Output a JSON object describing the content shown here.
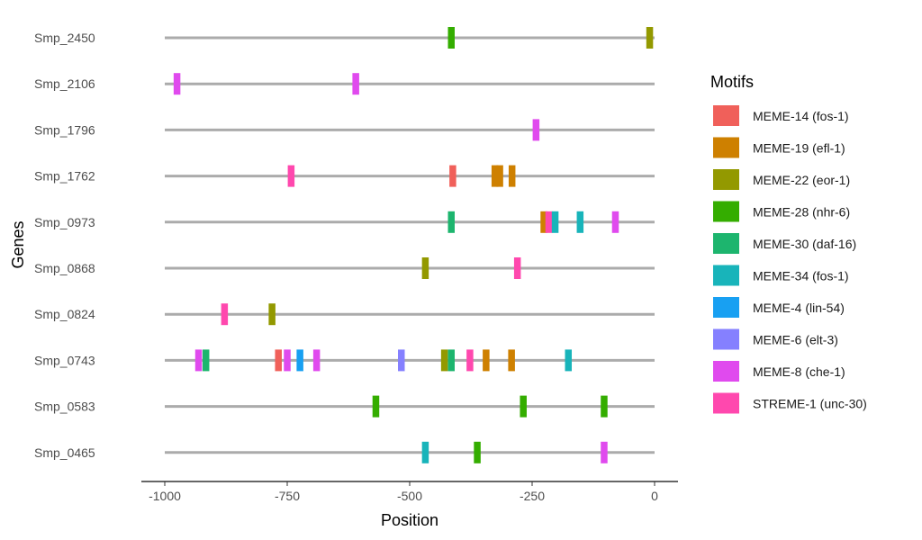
{
  "chart_data": {
    "type": "motif-map",
    "xlabel": "Position",
    "ylabel": "Genes",
    "xlim": [
      -1050,
      50
    ],
    "x_ticks": [
      -1000,
      -750,
      -500,
      -250,
      0
    ],
    "x_tick_labels": [
      "-1000",
      "-750",
      "-500",
      "-250",
      "0"
    ],
    "grid": false,
    "legend": {
      "title": "Motifs",
      "placement": "right",
      "entries": [
        {
          "name": "MEME-14 (fos-1)",
          "color": "#F0605A"
        },
        {
          "name": "MEME-19 (efl-1)",
          "color": "#CE8000"
        },
        {
          "name": "MEME-22 (eor-1)",
          "color": "#939900"
        },
        {
          "name": "MEME-28 (nhr-6)",
          "color": "#34AD00"
        },
        {
          "name": "MEME-30 (daf-16)",
          "color": "#1DB56E"
        },
        {
          "name": "MEME-34 (fos-1)",
          "color": "#18B4BA"
        },
        {
          "name": "MEME-4 (lin-54)",
          "color": "#18A0F2"
        },
        {
          "name": "MEME-6 (elt-3)",
          "color": "#8580FF"
        },
        {
          "name": "MEME-8 (che-1)",
          "color": "#E04AEE"
        },
        {
          "name": "STREME-1 (unc-30)",
          "color": "#FF48AE"
        }
      ]
    },
    "genes": [
      {
        "name": "Smp_2450",
        "start": -1000,
        "end": 0,
        "motifs": [
          {
            "motif": "MEME-28 (nhr-6)",
            "position": -415
          },
          {
            "motif": "MEME-22 (eor-1)",
            "position": -10
          }
        ]
      },
      {
        "name": "Smp_2106",
        "start": -1000,
        "end": 0,
        "motifs": [
          {
            "motif": "MEME-8 (che-1)",
            "position": -975
          },
          {
            "motif": "MEME-8 (che-1)",
            "position": -610
          }
        ]
      },
      {
        "name": "Smp_1796",
        "start": -1000,
        "end": 0,
        "motifs": [
          {
            "motif": "MEME-8 (che-1)",
            "position": -242
          }
        ]
      },
      {
        "name": "Smp_1762",
        "start": -1000,
        "end": 0,
        "motifs": [
          {
            "motif": "STREME-1 (unc-30)",
            "position": -742
          },
          {
            "motif": "MEME-14 (fos-1)",
            "position": -412
          },
          {
            "motif": "MEME-19 (efl-1)",
            "position": -326
          },
          {
            "motif": "MEME-19 (efl-1)",
            "position": -316
          },
          {
            "motif": "MEME-19 (efl-1)",
            "position": -291
          }
        ]
      },
      {
        "name": "Smp_0973",
        "start": -1000,
        "end": 0,
        "motifs": [
          {
            "motif": "MEME-30 (daf-16)",
            "position": -415
          },
          {
            "motif": "MEME-19 (efl-1)",
            "position": -226
          },
          {
            "motif": "STREME-1 (unc-30)",
            "position": -216
          },
          {
            "motif": "MEME-34 (fos-1)",
            "position": -203
          },
          {
            "motif": "MEME-34 (fos-1)",
            "position": -152
          },
          {
            "motif": "MEME-8 (che-1)",
            "position": -80
          }
        ]
      },
      {
        "name": "Smp_0868",
        "start": -1000,
        "end": 0,
        "motifs": [
          {
            "motif": "MEME-22 (eor-1)",
            "position": -468
          },
          {
            "motif": "STREME-1 (unc-30)",
            "position": -280
          }
        ]
      },
      {
        "name": "Smp_0824",
        "start": -1000,
        "end": 0,
        "motifs": [
          {
            "motif": "STREME-1 (unc-30)",
            "position": -878
          },
          {
            "motif": "MEME-22 (eor-1)",
            "position": -781
          }
        ]
      },
      {
        "name": "Smp_0743",
        "start": -1000,
        "end": 0,
        "motifs": [
          {
            "motif": "MEME-8 (che-1)",
            "position": -931
          },
          {
            "motif": "MEME-30 (daf-16)",
            "position": -916
          },
          {
            "motif": "MEME-14 (fos-1)",
            "position": -768
          },
          {
            "motif": "MEME-8 (che-1)",
            "position": -750
          },
          {
            "motif": "MEME-4 (lin-54)",
            "position": -724
          },
          {
            "motif": "MEME-8 (che-1)",
            "position": -690
          },
          {
            "motif": "MEME-6 (elt-3)",
            "position": -517
          },
          {
            "motif": "MEME-22 (eor-1)",
            "position": -429
          },
          {
            "motif": "MEME-30 (daf-16)",
            "position": -415
          },
          {
            "motif": "STREME-1 (unc-30)",
            "position": -377
          },
          {
            "motif": "MEME-19 (efl-1)",
            "position": -344
          },
          {
            "motif": "MEME-19 (efl-1)",
            "position": -292
          },
          {
            "motif": "MEME-34 (fos-1)",
            "position": -176
          }
        ]
      },
      {
        "name": "Smp_0583",
        "start": -1000,
        "end": 0,
        "motifs": [
          {
            "motif": "MEME-28 (nhr-6)",
            "position": -569
          },
          {
            "motif": "MEME-28 (nhr-6)",
            "position": -268
          },
          {
            "motif": "MEME-28 (nhr-6)",
            "position": -103
          }
        ]
      },
      {
        "name": "Smp_0465",
        "start": -1000,
        "end": 0,
        "motifs": [
          {
            "motif": "MEME-34 (fos-1)",
            "position": -468
          },
          {
            "motif": "MEME-28 (nhr-6)",
            "position": -362
          },
          {
            "motif": "MEME-8 (che-1)",
            "position": -103
          }
        ]
      }
    ]
  }
}
